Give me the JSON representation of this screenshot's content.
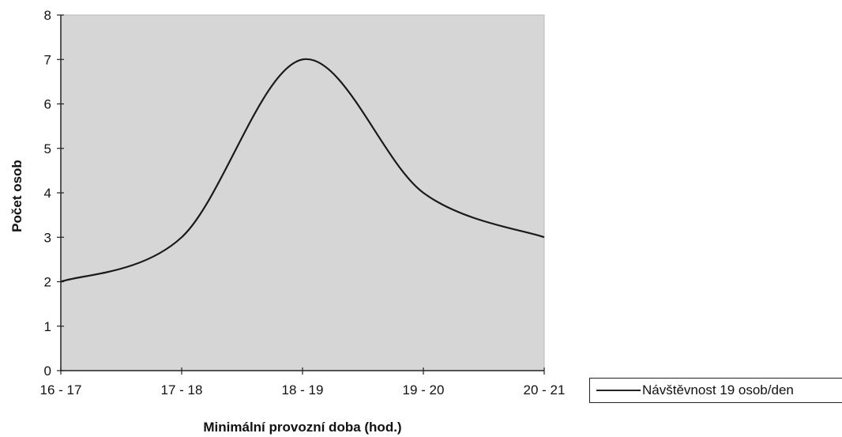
{
  "chart_data": {
    "type": "line",
    "categories": [
      "16 - 17",
      "17 - 18",
      "18 - 19",
      "19 - 20",
      "20 - 21"
    ],
    "series": [
      {
        "name": "Návštěvnost 19 osob/den",
        "values": [
          2,
          3,
          7,
          4,
          3
        ]
      }
    ],
    "xlabel": "Minimální provozní doba (hod.)",
    "ylabel": "Počet osob",
    "ylim": [
      0,
      8
    ],
    "yticks": [
      0,
      1,
      2,
      3,
      4,
      5,
      6,
      7,
      8
    ],
    "plot_background": "#d6d6d6",
    "line_color": "#1a1a1a",
    "grid": false,
    "smoothed": true,
    "legend_position": "bottom-right"
  }
}
